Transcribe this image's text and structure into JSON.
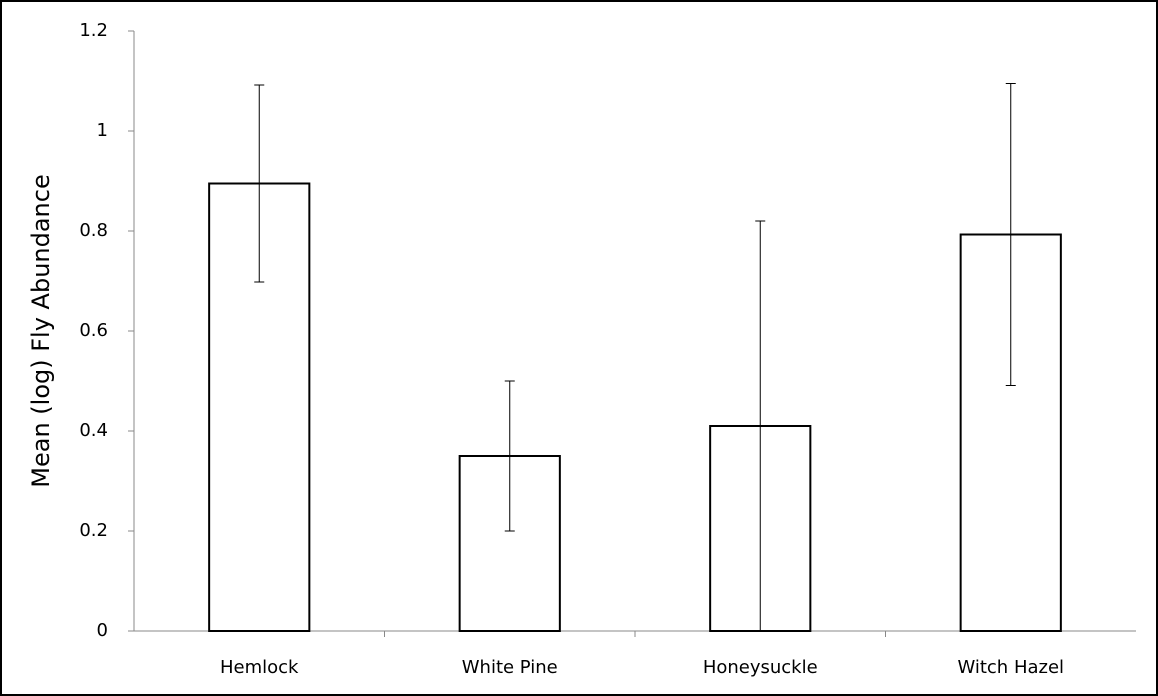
{
  "chart_data": {
    "type": "bar",
    "y_label": "Mean (log) Fly Abundance",
    "categories": [
      "Hemlock",
      "White Pine",
      "Honeysuckle",
      "Witch Hazel"
    ],
    "values": [
      0.895,
      0.35,
      0.41,
      0.793
    ],
    "errors": [
      0.197,
      0.15,
      0.41,
      0.302
    ],
    "color": "#ffffff",
    "ylim": [
      0,
      1.2
    ],
    "yticks": [
      0,
      0.2,
      0.4,
      0.6,
      0.8,
      1,
      1.2
    ],
    "grid": false
  }
}
